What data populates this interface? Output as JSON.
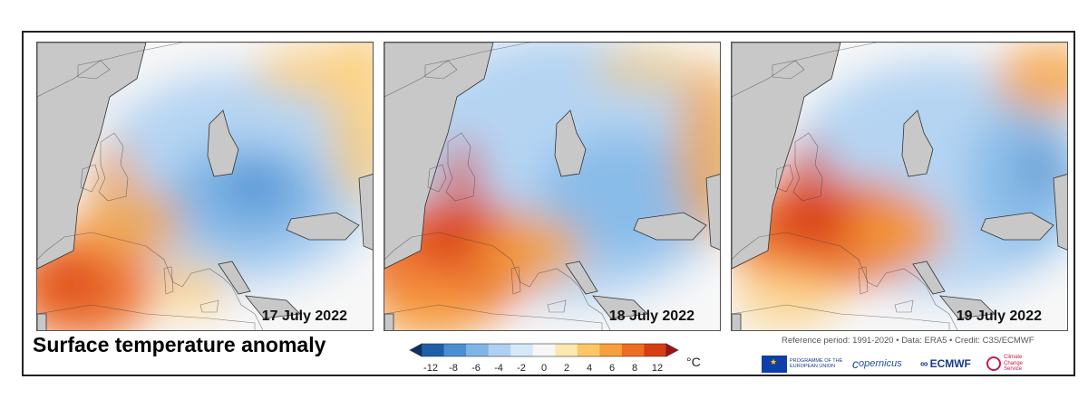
{
  "panels": [
    {
      "date": "17 July 2022",
      "pattern": "west-heat"
    },
    {
      "date": "18 July 2022",
      "pattern": "france-uk-heat"
    },
    {
      "date": "19 July 2022",
      "pattern": "peak-heat"
    }
  ],
  "caption": "Surface temperature anomaly",
  "colorbar": {
    "ticks": [
      "-12",
      "-8",
      "-6",
      "-4",
      "-2",
      "0",
      "2",
      "4",
      "6",
      "8",
      "12"
    ],
    "unit": "°C",
    "colors": [
      "#08306b",
      "#1f5fa8",
      "#4a8fd1",
      "#7fb5e6",
      "#aed0f2",
      "#d6e8f8",
      "#f7f7f7",
      "#fde9b0",
      "#fdc765",
      "#f8a03b",
      "#ee6d22",
      "#d83c12",
      "#a50f15"
    ]
  },
  "reference_text": "Reference period: 1991-2020 • Data: ERA5 • Credit: C3S/ECMWF",
  "logos": {
    "eu": "PROGRAMME OF THE EUROPEAN UNION",
    "copernicus": "opernicus",
    "ecmwf": "ECMWF",
    "c3s": "Climate Change Service"
  },
  "colors": {
    "land_gray": "#c8c8c8",
    "cold": "#aed0f2",
    "warm": "#f8a03b",
    "hot": "#d83c12"
  }
}
